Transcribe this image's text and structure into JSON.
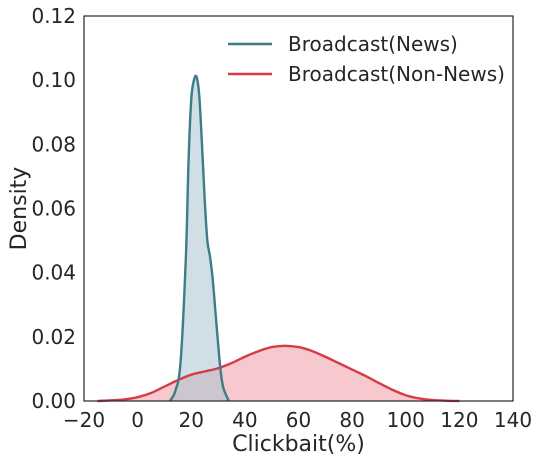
{
  "chart_data": {
    "type": "area",
    "title": "",
    "xlabel": "Clickbait(%)",
    "ylabel": "Density",
    "xlim": [
      -20,
      140
    ],
    "ylim": [
      0,
      0.12
    ],
    "x_ticks": [
      -20,
      0,
      20,
      40,
      60,
      80,
      100,
      120,
      140
    ],
    "x_tick_labels": [
      "−20",
      "0",
      "20",
      "40",
      "60",
      "80",
      "100",
      "120",
      "140"
    ],
    "y_ticks": [
      0,
      0.02,
      0.04,
      0.06,
      0.08,
      0.1,
      0.12
    ],
    "y_tick_labels": [
      "0.00",
      "0.02",
      "0.04",
      "0.06",
      "0.08",
      "0.10",
      "0.12"
    ],
    "grid": false,
    "legend_position": "top-right",
    "series": [
      {
        "name": "Broadcast(News)",
        "color": "#3e7c88",
        "fill": "#a8c5cf",
        "x": [
          12,
          14,
          16,
          18,
          19,
          20,
          21,
          22,
          23,
          24,
          25,
          26,
          27,
          28,
          29,
          30,
          31,
          32,
          34
        ],
        "y": [
          0,
          0.003,
          0.012,
          0.045,
          0.075,
          0.094,
          0.1,
          0.101,
          0.095,
          0.08,
          0.063,
          0.05,
          0.045,
          0.038,
          0.028,
          0.018,
          0.009,
          0.004,
          0
        ]
      },
      {
        "name": "Broadcast(Non-News)",
        "color": "#d63c48",
        "fill": "#f4b6bd",
        "x": [
          -15,
          -10,
          -5,
          0,
          5,
          10,
          15,
          20,
          25,
          30,
          35,
          40,
          45,
          50,
          55,
          60,
          65,
          70,
          75,
          80,
          85,
          90,
          95,
          100,
          105,
          110,
          115,
          120
        ],
        "y": [
          0,
          0.0002,
          0.0005,
          0.0012,
          0.0025,
          0.0045,
          0.0065,
          0.0082,
          0.0092,
          0.0102,
          0.0118,
          0.0138,
          0.0155,
          0.0168,
          0.0172,
          0.0168,
          0.0156,
          0.0138,
          0.0118,
          0.0098,
          0.0078,
          0.0056,
          0.0035,
          0.0018,
          0.0008,
          0.0003,
          0.0001,
          0
        ]
      }
    ]
  }
}
